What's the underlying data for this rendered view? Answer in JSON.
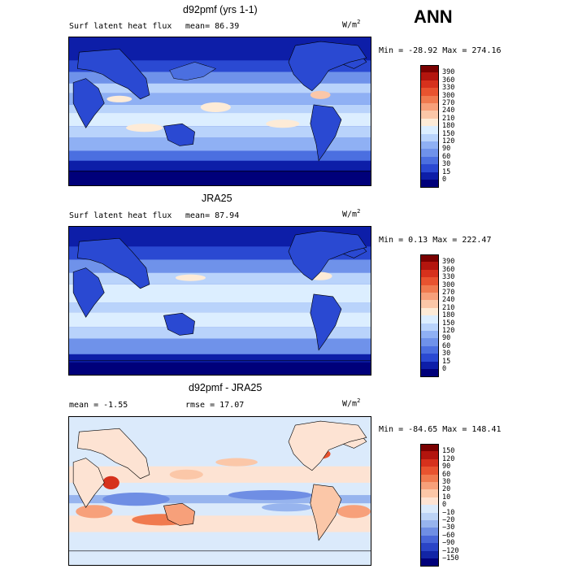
{
  "season": "ANN",
  "panels": [
    {
      "title": "d92pmf (yrs 1-1)",
      "left_text": "Surf latent heat flux",
      "stat_text": "mean=  86.39",
      "units_base": "W/m",
      "units_exp": "2",
      "minmax": "Min = -28.92 Max = 274.16",
      "colorbar": {
        "labels": [
          "390",
          "360",
          "330",
          "300",
          "270",
          "240",
          "210",
          "180",
          "150",
          "120",
          "90",
          "60",
          "30",
          "15",
          "0"
        ],
        "colors": [
          "#7a0000",
          "#b3150e",
          "#d6311c",
          "#e8532f",
          "#f07a4f",
          "#f7a07a",
          "#fbc7a8",
          "#fdebd7",
          "#dceeff",
          "#b9d3fb",
          "#8fb0f4",
          "#6f92ea",
          "#4b6fe0",
          "#2a49d2",
          "#0d1ea8",
          "#00007a"
        ]
      }
    },
    {
      "title": "JRA25",
      "left_text": "Surf latent heat flux",
      "stat_text": "mean=  87.94",
      "units_base": "W/m",
      "units_exp": "2",
      "minmax": "Min =   0.13 Max = 222.47",
      "colorbar": {
        "labels": [
          "390",
          "360",
          "330",
          "300",
          "270",
          "240",
          "210",
          "180",
          "150",
          "120",
          "90",
          "60",
          "30",
          "15",
          "0"
        ],
        "colors": [
          "#7a0000",
          "#b3150e",
          "#d6311c",
          "#e8532f",
          "#f07a4f",
          "#f7a07a",
          "#fbc7a8",
          "#fdebd7",
          "#dceeff",
          "#b9d3fb",
          "#8fb0f4",
          "#6f92ea",
          "#4b6fe0",
          "#2a49d2",
          "#0d1ea8",
          "#00007a"
        ]
      }
    },
    {
      "title": "d92pmf - JRA25",
      "left_text": "mean =  -1.55",
      "stat_text": "rmse =  17.07",
      "units_base": "W/m",
      "units_exp": "2",
      "minmax": "Min = -84.65 Max = 148.41",
      "colorbar": {
        "labels": [
          "150",
          "120",
          "90",
          "60",
          "30",
          "20",
          "10",
          "0",
          "−10",
          "−20",
          "−30",
          "−60",
          "−90",
          "−120",
          "−150"
        ],
        "colors": [
          "#7a0000",
          "#b3150e",
          "#d6311c",
          "#e8532f",
          "#f07a4f",
          "#f7a07a",
          "#fbc7a8",
          "#fde3d3",
          "#dbeafb",
          "#bcd3f6",
          "#97b4ee",
          "#6f8ee4",
          "#4866d8",
          "#2a44c6",
          "#1225a6",
          "#00007a"
        ]
      }
    }
  ],
  "chart_data": [
    {
      "type": "heatmap",
      "title": "d92pmf (yrs 1-1)",
      "variable": "Surf latent heat flux",
      "units": "W/m2",
      "mean": 86.39,
      "min": -28.92,
      "max": 274.16,
      "levels": [
        0,
        15,
        30,
        60,
        90,
        120,
        150,
        180,
        210,
        240,
        270,
        300,
        330,
        360,
        390
      ]
    },
    {
      "type": "heatmap",
      "title": "JRA25",
      "variable": "Surf latent heat flux",
      "units": "W/m2",
      "mean": 87.94,
      "min": 0.13,
      "max": 222.47,
      "levels": [
        0,
        15,
        30,
        60,
        90,
        120,
        150,
        180,
        210,
        240,
        270,
        300,
        330,
        360,
        390
      ]
    },
    {
      "type": "heatmap",
      "title": "d92pmf - JRA25",
      "units": "W/m2",
      "mean": -1.55,
      "rmse": 17.07,
      "min": -84.65,
      "max": 148.41,
      "levels": [
        -150,
        -120,
        -90,
        -60,
        -30,
        -20,
        -10,
        0,
        10,
        20,
        30,
        60,
        90,
        120,
        150
      ]
    }
  ]
}
